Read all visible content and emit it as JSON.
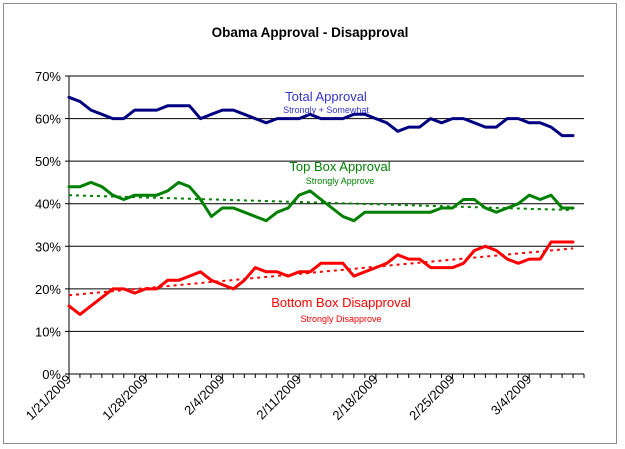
{
  "chart_data": {
    "type": "line",
    "title": "Obama Approval - Disapproval",
    "xlabel": "",
    "ylabel": "",
    "ylim": [
      0,
      70
    ],
    "yticks": [
      0,
      10,
      20,
      30,
      40,
      50,
      60,
      70
    ],
    "ytick_labels": [
      "0%",
      "10%",
      "20%",
      "30%",
      "40%",
      "50%",
      "60%",
      "70%"
    ],
    "x_range_days": [
      0,
      47
    ],
    "xtick_labels": [
      "1/21/2009",
      "1/28/2009",
      "2/4/2009",
      "2/11/2009",
      "2/18/2009",
      "2/25/2009",
      "3/4/2009"
    ],
    "xtick_days": [
      0,
      7,
      14,
      21,
      28,
      35,
      42
    ],
    "grid": true,
    "x_days": [
      0,
      1,
      2,
      3,
      4,
      5,
      6,
      7,
      8,
      9,
      10,
      11,
      12,
      13,
      14,
      15,
      16,
      17,
      18,
      19,
      20,
      21,
      22,
      23,
      24,
      25,
      26,
      27,
      28,
      29,
      30,
      31,
      32,
      33,
      34,
      35,
      36,
      37,
      38,
      39,
      40,
      41,
      42,
      43,
      44,
      45,
      46
    ],
    "series": [
      {
        "name": "Total Approval",
        "sub": "Strongly + Somewhat",
        "color": "#000080",
        "values": [
          65,
          64,
          62,
          61,
          60,
          60,
          62,
          62,
          62,
          63,
          63,
          63,
          60,
          61,
          62,
          62,
          61,
          60,
          59,
          60,
          60,
          60,
          61,
          60,
          60,
          60,
          61,
          61,
          60,
          59,
          57,
          58,
          58,
          60,
          59,
          60,
          60,
          59,
          58,
          58,
          60,
          60,
          59,
          59,
          58,
          56,
          56
        ]
      },
      {
        "name": "Top Box Approval",
        "sub": "Strongly Approve",
        "color": "#008000",
        "values": [
          44,
          44,
          45,
          44,
          42,
          41,
          42,
          42,
          42,
          43,
          45,
          44,
          41,
          37,
          39,
          39,
          38,
          37,
          36,
          38,
          39,
          42,
          43,
          41,
          39,
          37,
          36,
          38,
          38,
          38,
          38,
          38,
          38,
          38,
          39,
          39,
          41,
          41,
          39,
          38,
          39,
          40,
          42,
          41,
          42,
          39,
          39
        ],
        "trend": [
          42,
          38.5
        ]
      },
      {
        "name": "Bottom Box Disapproval",
        "sub": "Strongly Disapprove",
        "color": "#ff0000",
        "values": [
          16,
          14,
          16,
          18,
          20,
          20,
          19,
          20,
          20,
          22,
          22,
          23,
          24,
          22,
          21,
          20,
          22,
          25,
          24,
          24,
          23,
          24,
          24,
          26,
          26,
          26,
          23,
          24,
          25,
          26,
          28,
          27,
          27,
          25,
          25,
          25,
          26,
          29,
          30,
          29,
          27,
          26,
          27,
          27,
          31,
          31,
          31
        ],
        "trend": [
          18.5,
          29.5
        ]
      }
    ],
    "annotations": [
      {
        "series": 0,
        "text": "Total Approval",
        "sub": "Strongly + Somewhat"
      },
      {
        "series": 1,
        "text": "Top Box Approval",
        "sub": "Strongly Approve"
      },
      {
        "series": 2,
        "text": "Bottom Box Disapproval",
        "sub": "Strongly Disapprove"
      }
    ]
  }
}
